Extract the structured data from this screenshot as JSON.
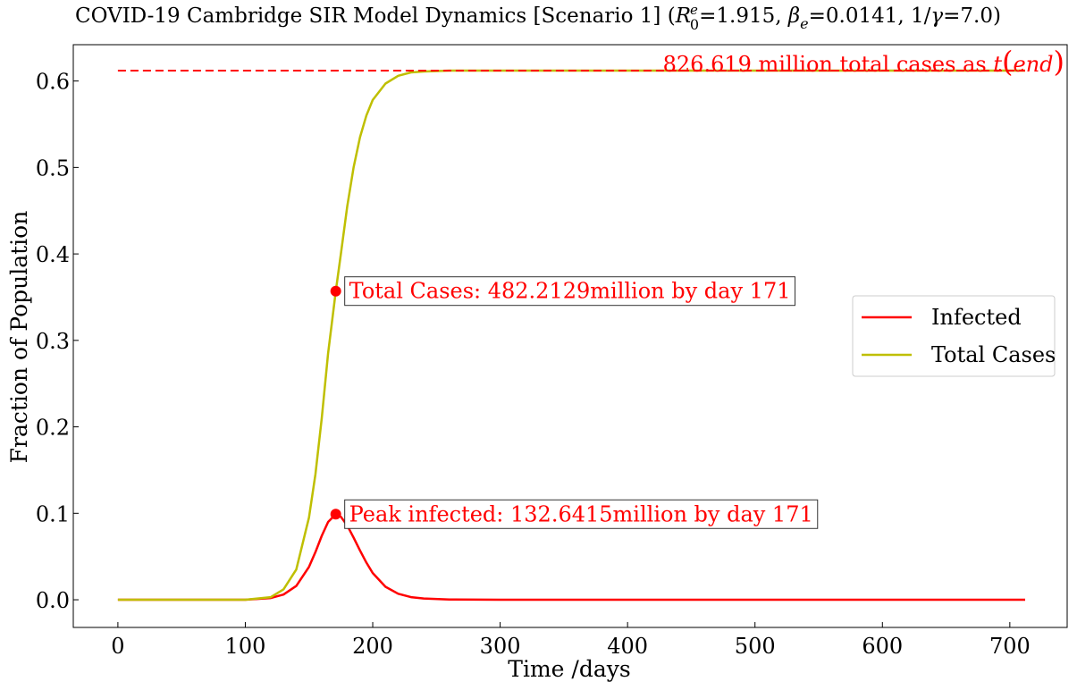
{
  "chart_data": {
    "type": "line",
    "title": {
      "prefix": "COVID-19 Cambridge SIR Model Dynamics [Scenario 1] (",
      "r_symbol": "R",
      "r_sup": "e",
      "r_sub": "0",
      "r_value": "=1.915, ",
      "beta_symbol": "β",
      "beta_sub": "e",
      "beta_value": "=0.0141, 1/",
      "gamma_symbol": "γ",
      "gamma_value": "=7.0)"
    },
    "xlabel": "Time /days",
    "ylabel": "Fraction of Population",
    "xlim": [
      -35,
      745
    ],
    "ylim": [
      -0.032,
      0.642
    ],
    "x_ticks": [
      0,
      100,
      200,
      300,
      400,
      500,
      600,
      700
    ],
    "y_ticks": [
      0.0,
      0.1,
      0.2,
      0.3,
      0.4,
      0.5,
      0.6
    ],
    "y_tick_labels": [
      "0.0",
      "0.1",
      "0.2",
      "0.3",
      "0.4",
      "0.5",
      "0.6"
    ],
    "grid": false,
    "legend_position": "center-right",
    "series": [
      {
        "name": "Infected",
        "color": "#ff0000",
        "x": [
          0,
          100,
          120,
          130,
          140,
          150,
          155,
          160,
          165,
          171,
          175,
          180,
          185,
          190,
          195,
          200,
          210,
          220,
          230,
          240,
          260,
          300,
          400,
          500,
          600,
          712
        ],
        "y": [
          0.0,
          0.0,
          0.002,
          0.006,
          0.016,
          0.038,
          0.055,
          0.074,
          0.09,
          0.099,
          0.096,
          0.086,
          0.072,
          0.057,
          0.043,
          0.031,
          0.015,
          0.007,
          0.003,
          0.0015,
          0.0004,
          0.0,
          0.0,
          0.0,
          0.0,
          0.0
        ]
      },
      {
        "name": "Total Cases",
        "color": "#bfbf00",
        "x": [
          0,
          100,
          120,
          130,
          140,
          150,
          155,
          160,
          165,
          171,
          175,
          180,
          185,
          190,
          195,
          200,
          210,
          220,
          230,
          240,
          260,
          300,
          400,
          500,
          600,
          712
        ],
        "y": [
          0.0,
          0.0,
          0.003,
          0.012,
          0.035,
          0.095,
          0.145,
          0.21,
          0.285,
          0.357,
          0.4,
          0.455,
          0.5,
          0.535,
          0.56,
          0.578,
          0.597,
          0.606,
          0.61,
          0.611,
          0.612,
          0.612,
          0.612,
          0.612,
          0.612,
          0.612
        ]
      }
    ],
    "reference_line": {
      "y": 0.612,
      "x_range": [
        0,
        712
      ],
      "color": "#ff0000",
      "style": "dashed",
      "label_prefix": "826.619 million total cases as ",
      "label_t": "t",
      "label_paren_open": "(",
      "label_end": "end",
      "label_paren_close": ")"
    },
    "annotations": [
      {
        "id": "total",
        "x": 171,
        "y": 0.357,
        "text": "Total Cases: 482.2129million by day 171"
      },
      {
        "id": "peak",
        "x": 171,
        "y": 0.099,
        "text": "Peak infected: 132.6415million by day 171"
      }
    ],
    "marker_color": "#ff0000"
  }
}
